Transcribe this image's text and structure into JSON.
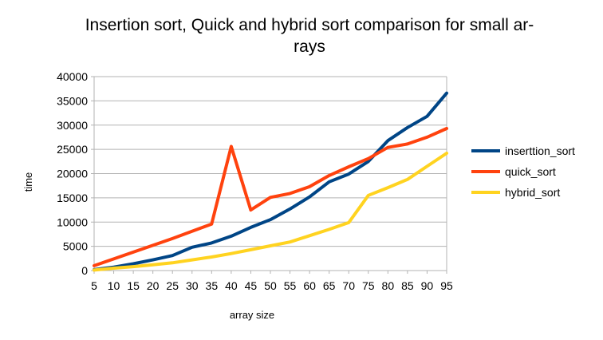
{
  "chart_data": {
    "type": "line",
    "title_line1": "Insertion sort, Quick and hybrid sort comparison for small ar-",
    "title_line2": "rays",
    "xlabel": "array size",
    "ylabel": "time",
    "x": [
      5,
      10,
      15,
      20,
      25,
      30,
      35,
      40,
      45,
      50,
      55,
      60,
      65,
      70,
      75,
      80,
      85,
      90,
      95
    ],
    "ylim": [
      0,
      40000
    ],
    "yticks": [
      0,
      5000,
      10000,
      15000,
      20000,
      25000,
      30000,
      35000,
      40000
    ],
    "grid": true,
    "legend": "right",
    "series": [
      {
        "name": "inserttion_sort",
        "color": "#004586",
        "values": [
          200,
          700,
          1400,
          2200,
          3100,
          4800,
          5700,
          7100,
          8900,
          10500,
          12700,
          15200,
          18300,
          19900,
          22500,
          26800,
          29500,
          31800,
          36600
        ]
      },
      {
        "name": "quick_sort",
        "color": "#ff420e",
        "values": [
          1000,
          2400,
          3800,
          5200,
          6600,
          8100,
          9600,
          25600,
          12500,
          15100,
          15900,
          17300,
          19600,
          21400,
          23100,
          25400,
          26100,
          27500,
          29300
        ]
      },
      {
        "name": "hybrid_sort",
        "color": "#ffd320",
        "values": [
          100,
          500,
          800,
          1200,
          1600,
          2200,
          2800,
          3500,
          4300,
          5100,
          5900,
          7200,
          8500,
          9900,
          15500,
          17100,
          18800,
          21500,
          24200
        ]
      }
    ]
  }
}
